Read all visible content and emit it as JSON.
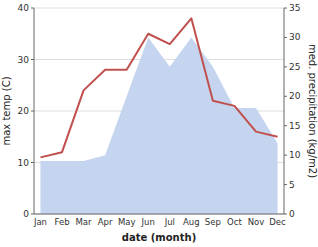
{
  "chart_data": {
    "type": "line",
    "xlabel": "date (month)",
    "ylabel": "max temp (C)",
    "y2label": "med. precipitation (kg/m2)",
    "categories": [
      "Jan",
      "Feb",
      "Mar",
      "Apr",
      "May",
      "Jun",
      "Jul",
      "Aug",
      "Sep",
      "Oct",
      "Nov",
      "Dec"
    ],
    "series": [
      {
        "type": "area",
        "color": "#c5d5f0",
        "axis": "y2",
        "values": [
          9,
          9,
          9,
          10,
          20,
          30,
          25,
          30,
          25,
          18,
          18,
          12
        ]
      },
      {
        "type": "line",
        "color": "#c0504d",
        "values": [
          11,
          12,
          24,
          28,
          28,
          35,
          33,
          38,
          22,
          21,
          16,
          15
        ]
      }
    ],
    "ylim": [
      0,
      40
    ],
    "yticks": [
      0,
      10,
      20,
      30,
      40
    ],
    "y2lim": [
      0,
      35
    ],
    "y2ticks": [
      0,
      5,
      10,
      15,
      20,
      25,
      30,
      35
    ],
    "grid": true
  }
}
